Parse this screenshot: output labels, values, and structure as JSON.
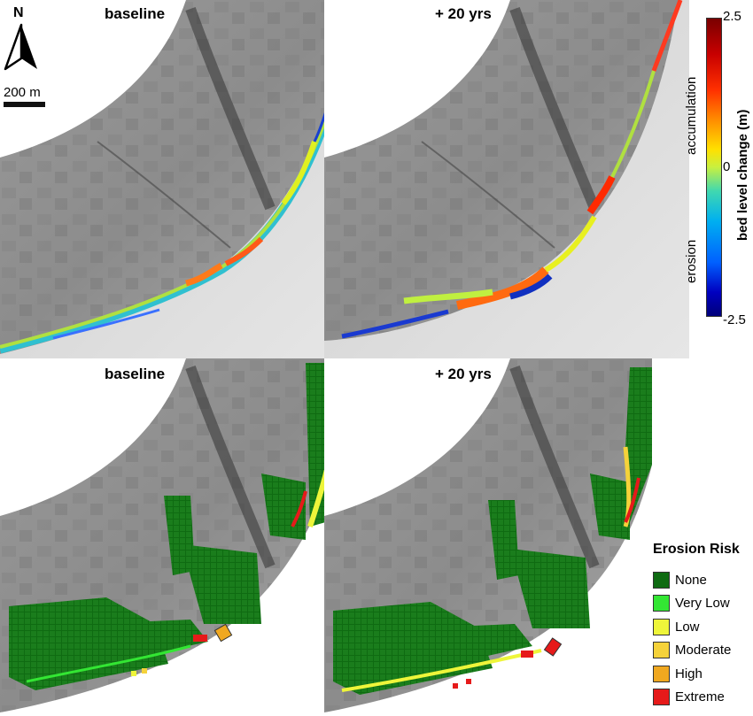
{
  "panels": {
    "top_left_title": "baseline",
    "top_right_title": "+ 20 yrs",
    "bottom_left_title": "baseline",
    "bottom_right_title": "+ 20 yrs"
  },
  "north_arrow": {
    "letter": "N"
  },
  "scale_bar": {
    "label": "200 m"
  },
  "colorbar": {
    "title": "bed level change (m)",
    "max_label": "2.5",
    "mid_label": "0",
    "min_label": "-2.5",
    "upper_label": "accumulation",
    "lower_label": "erosion",
    "colors": {
      "max": "#7a0000",
      "mid": "#c8f040",
      "min": "#00007a"
    }
  },
  "legend": {
    "title": "Erosion Risk",
    "items": [
      {
        "label": "None",
        "color": "#0f6b12"
      },
      {
        "label": "Very Low",
        "color": "#33e633"
      },
      {
        "label": "Low",
        "color": "#eef53a"
      },
      {
        "label": "Moderate",
        "color": "#f5d23a"
      },
      {
        "label": "High",
        "color": "#f0a820"
      },
      {
        "label": "Extreme",
        "color": "#e61a1a"
      }
    ]
  }
}
